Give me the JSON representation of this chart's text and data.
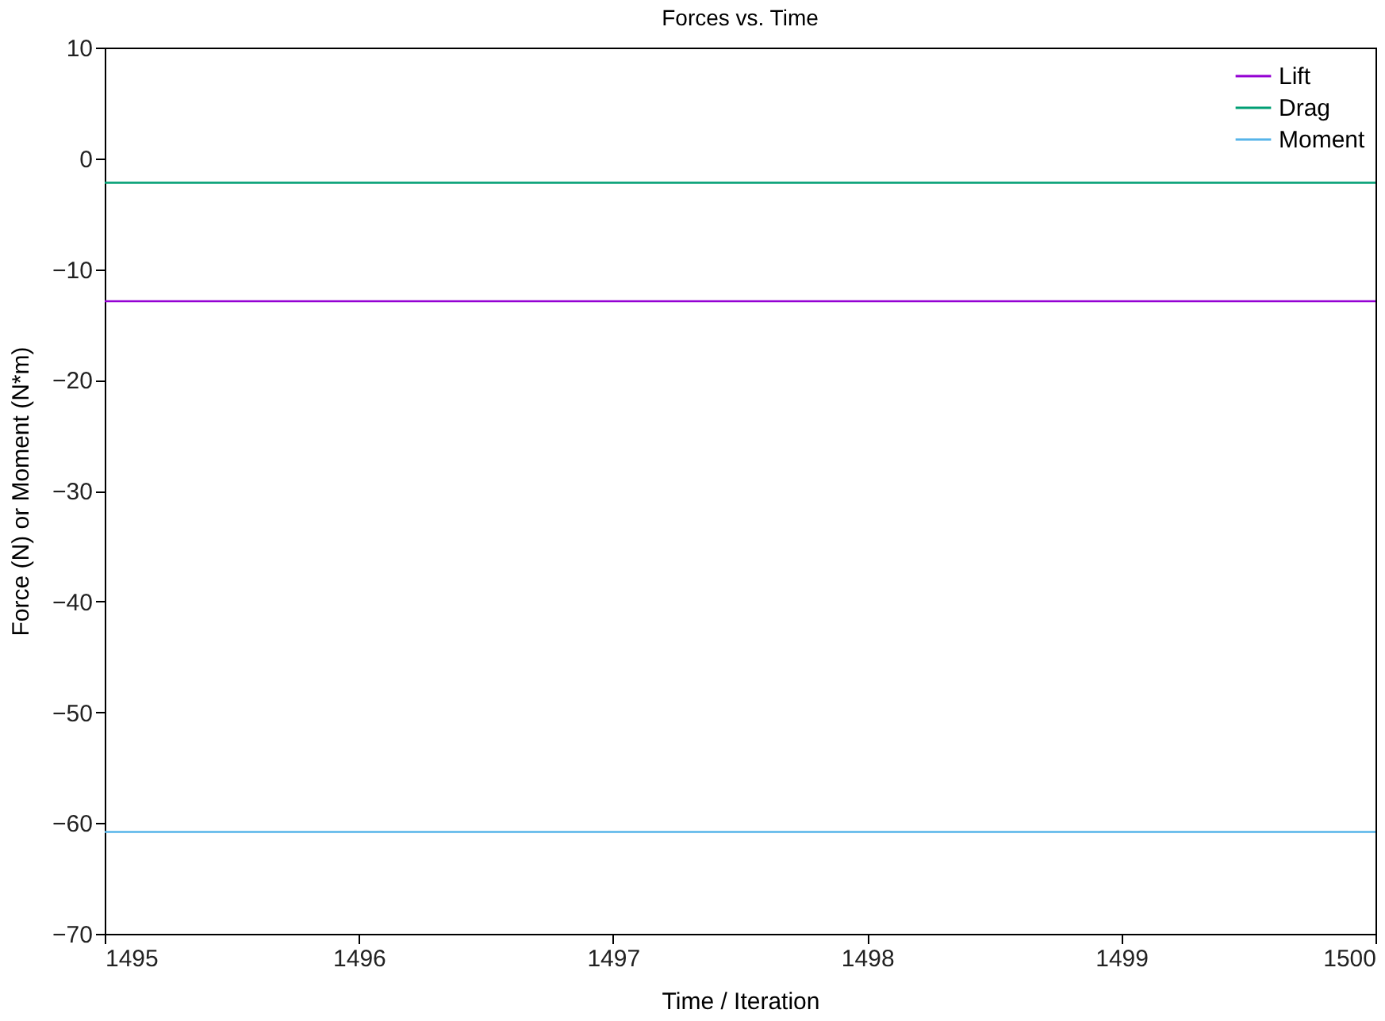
{
  "chart_data": {
    "type": "line",
    "title": "Forces vs. Time",
    "xlabel": "Time / Iteration",
    "ylabel": "Force (N) or Moment (N*m)",
    "x": [
      1495,
      1500
    ],
    "series": [
      {
        "name": "Lift",
        "color": "#9400d3",
        "values": [
          -12.9,
          -12.9
        ]
      },
      {
        "name": "Drag",
        "color": "#009e73",
        "values": [
          -2.2,
          -2.2
        ]
      },
      {
        "name": "Moment",
        "color": "#56b4e9",
        "values": [
          -60.8,
          -60.8
        ]
      }
    ],
    "xlim": [
      1495,
      1500
    ],
    "xticks": [
      1495,
      1496,
      1497,
      1498,
      1499,
      1500
    ],
    "ylim": [
      -70,
      10
    ],
    "yticks": [
      -70,
      -60,
      -50,
      -40,
      -30,
      -20,
      -10,
      0,
      10
    ],
    "grid": false,
    "legend": "top right",
    "marker": "none",
    "line_style": "solid"
  }
}
